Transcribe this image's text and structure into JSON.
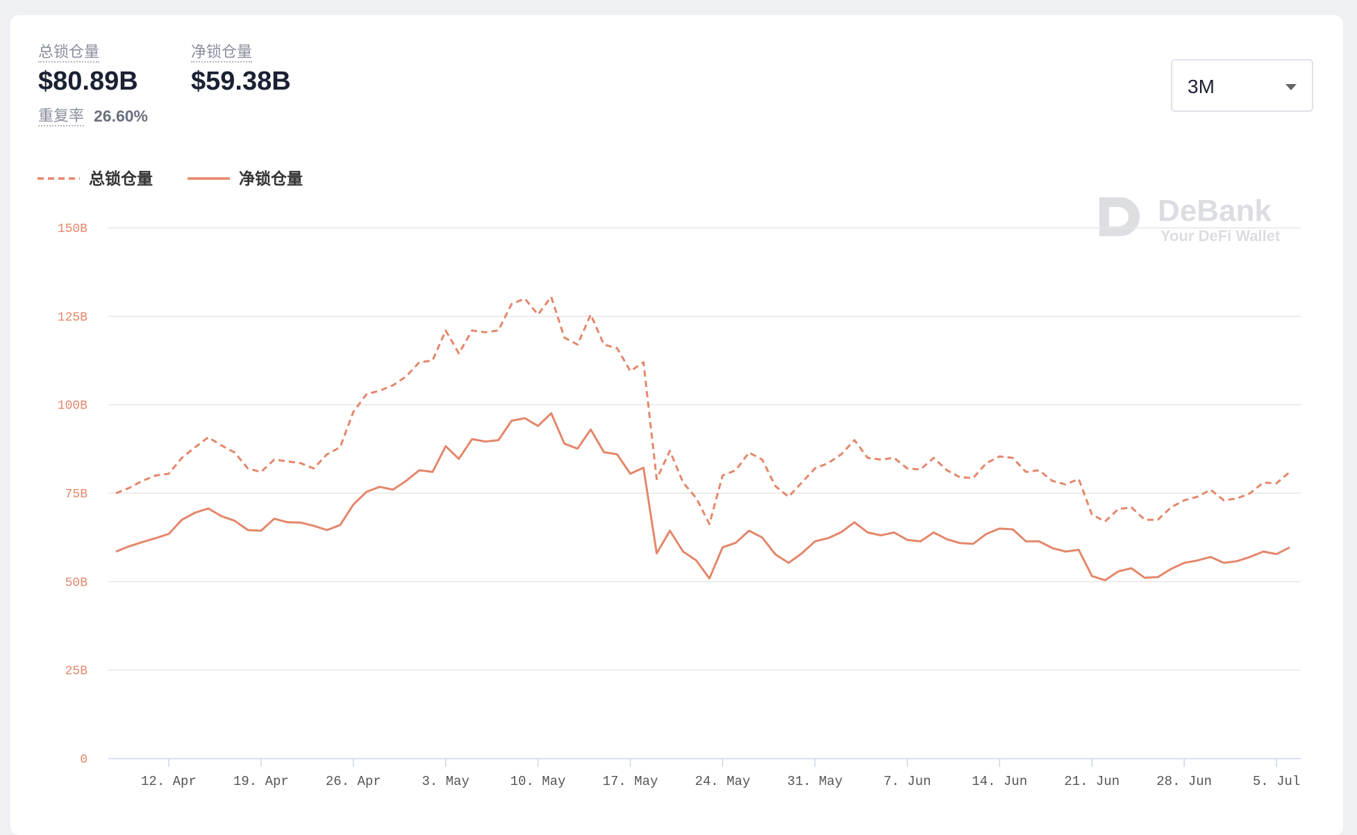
{
  "header": {
    "stats": [
      {
        "label": "总锁仓量",
        "value": "$80.89B"
      },
      {
        "label": "净锁仓量",
        "value": "$59.38B"
      }
    ],
    "ratio_label": "重复率",
    "ratio_value": "26.60%",
    "range": "3M",
    "watermark": {
      "title": "DeBank",
      "subtitle": "Your DeFi Wallet"
    }
  },
  "chart_data": {
    "type": "line",
    "categories": [
      null,
      null,
      null,
      null,
      "12. Apr",
      null,
      null,
      null,
      null,
      null,
      null,
      "19. Apr",
      null,
      null,
      null,
      null,
      null,
      null,
      "26. Apr",
      null,
      null,
      null,
      null,
      null,
      null,
      "3. May",
      null,
      null,
      null,
      null,
      null,
      null,
      "10. May",
      null,
      null,
      null,
      null,
      null,
      null,
      "17. May",
      null,
      null,
      null,
      null,
      null,
      null,
      "24. May",
      null,
      null,
      null,
      null,
      null,
      null,
      "31. May",
      null,
      null,
      null,
      null,
      null,
      null,
      "7. Jun",
      null,
      null,
      null,
      null,
      null,
      null,
      "14. Jun",
      null,
      null,
      null,
      null,
      null,
      null,
      "21. Jun",
      null,
      null,
      null,
      null,
      null,
      null,
      "28. Jun",
      null,
      null,
      null,
      null,
      null,
      null,
      "5. Jul",
      null
    ],
    "series": [
      {
        "name": "总锁仓量",
        "color": "#e4866a",
        "dashed": true,
        "values": [
          75,
          76.5,
          78.5,
          80,
          80.5,
          85,
          88,
          90.8,
          88.5,
          86.5,
          82,
          81,
          84.5,
          84,
          83.5,
          82,
          86,
          88,
          98,
          103,
          104,
          105.5,
          108,
          112,
          112.5,
          121,
          114.5,
          121,
          120.5,
          121,
          128.5,
          130,
          125.5,
          130.5,
          119,
          117,
          125.5,
          117,
          116,
          109.5,
          112,
          79,
          87,
          78,
          73.6,
          66.3,
          80,
          81.5,
          86.5,
          84.5,
          77,
          74,
          78,
          82,
          83.5,
          86,
          90,
          85,
          84.5,
          85,
          82,
          81.7,
          85,
          81.5,
          79.5,
          79.3,
          83.5,
          85.4,
          85,
          81,
          81.5,
          78.5,
          77.5,
          79,
          69,
          67,
          70.5,
          71,
          67.5,
          67.5,
          71,
          73,
          74,
          76,
          73,
          73.5,
          75,
          78,
          77.8,
          81
        ]
      },
      {
        "name": "净锁仓量",
        "color": "#e4866a",
        "dashed": false,
        "values": [
          58.5,
          60,
          61.2,
          62.3,
          63.5,
          67.5,
          69.5,
          70.7,
          68.5,
          67.2,
          64.6,
          64.4,
          67.8,
          66.8,
          66.7,
          65.8,
          64.6,
          66,
          71.8,
          75.4,
          76.8,
          76,
          78.5,
          81.5,
          81,
          88.3,
          84.7,
          90.3,
          89.6,
          90,
          95.5,
          96.2,
          94,
          97.6,
          89,
          87.6,
          93,
          86.6,
          86,
          80.5,
          82.2,
          58,
          64.4,
          58.5,
          56,
          50.9,
          59.7,
          61,
          64.4,
          62.5,
          57.7,
          55.3,
          58,
          61.4,
          62.3,
          64,
          66.8,
          63.9,
          63.1,
          63.9,
          61.8,
          61.4,
          63.9,
          62,
          60.9,
          60.7,
          63.5,
          65,
          64.8,
          61.4,
          61.4,
          59.5,
          58.5,
          59,
          51.6,
          50.4,
          52.9,
          53.8,
          51.1,
          51.3,
          53.6,
          55.3,
          56,
          57,
          55.3,
          55.8,
          57,
          58.5,
          57.8,
          59.7
        ]
      }
    ],
    "ylim": [
      0,
      150
    ],
    "yticks": [
      0,
      {
        "value": 25,
        "label": "25B"
      },
      {
        "value": 50,
        "label": "50B"
      },
      {
        "value": 75,
        "label": "75B"
      },
      {
        "value": 100,
        "label": "100B"
      },
      {
        "value": 125,
        "label": "125B"
      },
      {
        "value": 150,
        "label": "150B"
      }
    ],
    "grid": true,
    "legend": "top-left"
  }
}
